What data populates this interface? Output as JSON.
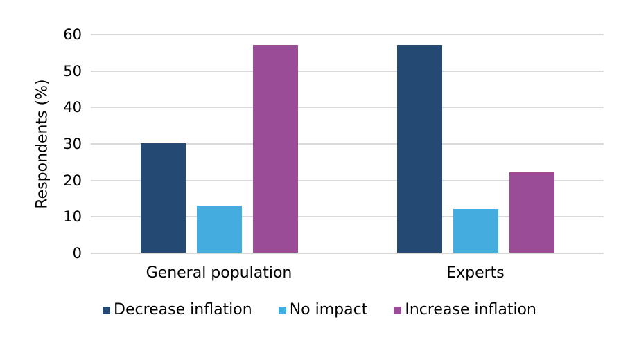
{
  "chart_data": {
    "type": "bar",
    "ylabel": "Respondents (%)",
    "xlabel": "",
    "ylim": [
      0,
      60
    ],
    "yticks": [
      0,
      10,
      20,
      30,
      40,
      50,
      60
    ],
    "categories": [
      "General population",
      "Experts"
    ],
    "series": [
      {
        "name": "Decrease inflation",
        "color": "#244a73",
        "values": [
          30,
          57
        ]
      },
      {
        "name": "No impact",
        "color": "#45acdf",
        "values": [
          13,
          12
        ]
      },
      {
        "name": "Increase inflation",
        "color": "#9a4d96",
        "values": [
          57,
          22
        ]
      }
    ],
    "grid": true,
    "gridline_color": "#d9d9d9",
    "legend_position": "bottom",
    "background_color": "#ffffff",
    "text_color": "#000000"
  }
}
